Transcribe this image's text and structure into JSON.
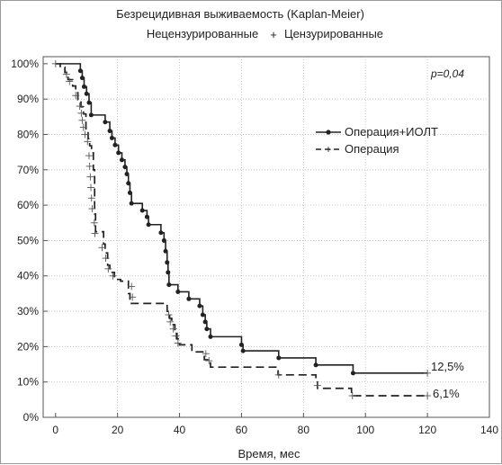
{
  "chart_data": {
    "type": "line",
    "title": "Безрецидивная выживаемость (Kaplan-Meier)",
    "legend_top": {
      "uncensored": "Нецензурированные",
      "censored": "Цензурированные",
      "censored_marker": "+"
    },
    "xlabel": "Время, мес",
    "ylabel": "",
    "xlim": [
      -4,
      140
    ],
    "ylim": [
      0,
      1.02
    ],
    "x_ticks": [
      0,
      20,
      40,
      60,
      80,
      100,
      120,
      140
    ],
    "y_ticks": [
      0,
      0.1,
      0.2,
      0.3,
      0.4,
      0.5,
      0.6,
      0.7,
      0.8,
      0.9,
      1.0
    ],
    "y_tick_labels": [
      "0%",
      "10%",
      "20%",
      "30%",
      "40%",
      "50%",
      "60%",
      "70%",
      "80%",
      "90%",
      "100%"
    ],
    "grid": true,
    "annotation": "p=0,04",
    "legend_placement": "right",
    "series": [
      {
        "name": "Операция+ИОЛТ",
        "line_style": "solid",
        "color": "#222222",
        "end_label": "12,5%",
        "steps": [
          [
            0,
            1.0
          ],
          [
            8,
            0.98
          ],
          [
            8.6,
            0.96
          ],
          [
            9.2,
            0.935
          ],
          [
            10,
            0.915
          ],
          [
            10.8,
            0.89
          ],
          [
            11.5,
            0.855
          ],
          [
            16,
            0.835
          ],
          [
            17.5,
            0.81
          ],
          [
            18.2,
            0.79
          ],
          [
            19.2,
            0.77
          ],
          [
            20.3,
            0.748
          ],
          [
            21.4,
            0.728
          ],
          [
            22.4,
            0.708
          ],
          [
            23,
            0.688
          ],
          [
            23.5,
            0.662
          ],
          [
            24,
            0.635
          ],
          [
            24.5,
            0.605
          ],
          [
            28,
            0.585
          ],
          [
            29.5,
            0.567
          ],
          [
            30,
            0.545
          ],
          [
            34,
            0.522
          ],
          [
            35,
            0.5
          ],
          [
            35.5,
            0.47
          ],
          [
            36,
            0.438
          ],
          [
            36.3,
            0.41
          ],
          [
            36.6,
            0.375
          ],
          [
            39.5,
            0.355
          ],
          [
            43,
            0.335
          ],
          [
            46.5,
            0.315
          ],
          [
            47.5,
            0.29
          ],
          [
            48.3,
            0.27
          ],
          [
            48.8,
            0.25
          ],
          [
            50,
            0.228
          ],
          [
            60,
            0.205
          ],
          [
            60.5,
            0.188
          ],
          [
            72,
            0.168
          ],
          [
            84,
            0.148
          ],
          [
            96,
            0.125
          ],
          [
            120,
            0.125
          ]
        ],
        "censored_points": [
          [
            120,
            0.125
          ]
        ]
      },
      {
        "name": "Операция",
        "line_style": "dashed",
        "color": "#222222",
        "end_label": "6,1%",
        "steps": [
          [
            0,
            1.0
          ],
          [
            1.5,
            0.99
          ],
          [
            3,
            0.975
          ],
          [
            4,
            0.955
          ],
          [
            5.5,
            0.937
          ],
          [
            6.5,
            0.918
          ],
          [
            7.2,
            0.898
          ],
          [
            8.2,
            0.878
          ],
          [
            9,
            0.858
          ],
          [
            9.8,
            0.808
          ],
          [
            10.5,
            0.788
          ],
          [
            11,
            0.768
          ],
          [
            11.6,
            0.748
          ],
          [
            12.2,
            0.7
          ],
          [
            12.6,
            0.575
          ],
          [
            12.9,
            0.525
          ],
          [
            15.5,
            0.49
          ],
          [
            16,
            0.465
          ],
          [
            16.8,
            0.43
          ],
          [
            17.5,
            0.41
          ],
          [
            19,
            0.39
          ],
          [
            21,
            0.385
          ],
          [
            23.5,
            0.35
          ],
          [
            24,
            0.322
          ],
          [
            36,
            0.3
          ],
          [
            36.8,
            0.28
          ],
          [
            37.5,
            0.262
          ],
          [
            38.5,
            0.24
          ],
          [
            39.2,
            0.222
          ],
          [
            40,
            0.205
          ],
          [
            44,
            0.185
          ],
          [
            48,
            0.163
          ],
          [
            50,
            0.142
          ],
          [
            71.8,
            0.12
          ],
          [
            84,
            0.1
          ],
          [
            84.5,
            0.082
          ],
          [
            95.5,
            0.061
          ],
          [
            120,
            0.061
          ]
        ],
        "censored_points": [
          [
            0,
            1.0
          ],
          [
            3.5,
            0.97
          ],
          [
            4.5,
            0.95
          ],
          [
            6.5,
            0.91
          ],
          [
            7.8,
            0.88
          ],
          [
            8.3,
            0.86
          ],
          [
            8.6,
            0.84
          ],
          [
            9,
            0.82
          ],
          [
            9.5,
            0.8
          ],
          [
            10.3,
            0.78
          ],
          [
            10.8,
            0.74
          ],
          [
            11,
            0.71
          ],
          [
            11.2,
            0.68
          ],
          [
            11.4,
            0.65
          ],
          [
            11.6,
            0.62
          ],
          [
            11.8,
            0.59
          ],
          [
            12.5,
            0.55
          ],
          [
            12.7,
            0.52
          ],
          [
            15,
            0.48
          ],
          [
            16.2,
            0.45
          ],
          [
            17,
            0.42
          ],
          [
            18.5,
            0.4
          ],
          [
            24.5,
            0.37
          ],
          [
            24.8,
            0.34
          ],
          [
            36.5,
            0.29
          ],
          [
            37,
            0.27
          ],
          [
            38,
            0.25
          ],
          [
            38.8,
            0.23
          ],
          [
            39.5,
            0.21
          ],
          [
            48.5,
            0.18
          ],
          [
            49.5,
            0.16
          ],
          [
            72,
            0.12
          ],
          [
            84.5,
            0.09
          ],
          [
            95.8,
            0.061
          ],
          [
            120,
            0.061
          ]
        ]
      }
    ]
  }
}
